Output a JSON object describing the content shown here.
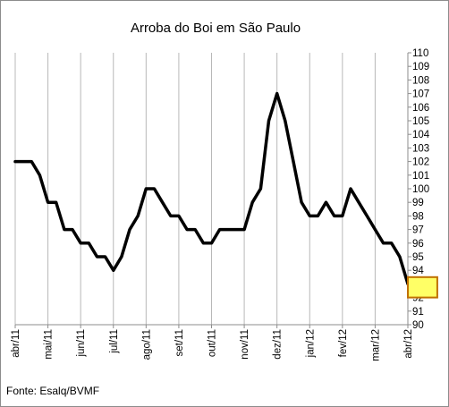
{
  "chart_data": {
    "type": "line",
    "title": "Arroba do Boi  em São Paulo",
    "xlabel": "",
    "ylabel": "",
    "ylim": [
      90,
      110
    ],
    "y_ticks": [
      "110",
      "109",
      "108",
      "107",
      "106",
      "105",
      "104",
      "103",
      "102",
      "101",
      "100",
      "99",
      "98",
      "97",
      "96",
      "95",
      "94",
      "93",
      "92",
      "91",
      "90"
    ],
    "x_tick_labels": [
      "abr/11",
      "mai/11",
      "jun/11",
      "jul/11",
      "ago/11",
      "set/11",
      "out/11",
      "nov/11",
      "dez/11",
      "jan/12",
      "fev/12",
      "mar/12",
      "abr/12"
    ],
    "x_range": [
      0,
      12
    ],
    "grid": "vertical",
    "legend": "none",
    "line_color": "#000000",
    "series": [
      {
        "values": [
          [
            0,
            102
          ],
          [
            0.5,
            102
          ],
          [
            0.75,
            101
          ],
          [
            1.0,
            99
          ],
          [
            1.25,
            99
          ],
          [
            1.5,
            97
          ],
          [
            1.75,
            97
          ],
          [
            2.0,
            96
          ],
          [
            2.25,
            96
          ],
          [
            2.5,
            95
          ],
          [
            2.75,
            95
          ],
          [
            3.0,
            94
          ],
          [
            3.25,
            95
          ],
          [
            3.5,
            97
          ],
          [
            3.75,
            98
          ],
          [
            4.0,
            100
          ],
          [
            4.25,
            100
          ],
          [
            4.5,
            99
          ],
          [
            4.75,
            98
          ],
          [
            5.0,
            98
          ],
          [
            5.25,
            97
          ],
          [
            5.5,
            97
          ],
          [
            5.75,
            96
          ],
          [
            6.0,
            96
          ],
          [
            6.25,
            97
          ],
          [
            6.5,
            97
          ],
          [
            6.75,
            97
          ],
          [
            7.0,
            97
          ],
          [
            7.25,
            99
          ],
          [
            7.5,
            100
          ],
          [
            7.75,
            105
          ],
          [
            8.0,
            107
          ],
          [
            8.25,
            105
          ],
          [
            8.5,
            102
          ],
          [
            8.75,
            99
          ],
          [
            9.0,
            98
          ],
          [
            9.25,
            98
          ],
          [
            9.5,
            99
          ],
          [
            9.75,
            98
          ],
          [
            10.0,
            98
          ],
          [
            10.25,
            100
          ],
          [
            10.5,
            99
          ],
          [
            10.75,
            98
          ],
          [
            11.0,
            97
          ],
          [
            11.25,
            96
          ],
          [
            11.5,
            96
          ],
          [
            11.75,
            95
          ],
          [
            12.0,
            93
          ]
        ]
      }
    ],
    "annotation_box": {
      "x": [
        12.0,
        12.9
      ],
      "y": [
        92,
        93.5
      ],
      "fill": "#ffff66",
      "stroke": "#c07000"
    }
  },
  "source_label": "Fonte: Esalq/BVMF"
}
